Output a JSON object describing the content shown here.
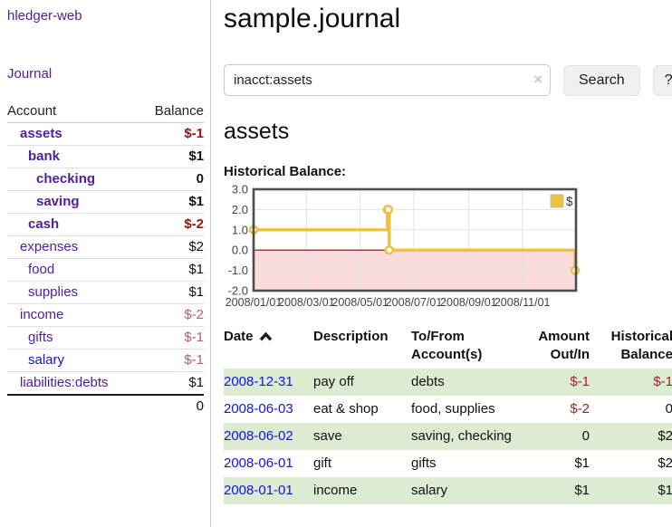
{
  "app": {
    "brand": "hledger-web"
  },
  "sidebar": {
    "journal_link": "Journal",
    "accounts": {
      "col_account": "Account",
      "col_balance": "Balance",
      "rows": [
        {
          "name": "assets",
          "balance": "$-1",
          "level": 1,
          "bold": true,
          "balance_style": "neg-strong",
          "link": "purple"
        },
        {
          "name": "bank",
          "balance": "$1",
          "level": 2,
          "bold": true,
          "balance_style": "pos",
          "link": "purple"
        },
        {
          "name": "checking",
          "balance": "0",
          "level": 3,
          "bold": true,
          "balance_style": "pos",
          "link": "purple"
        },
        {
          "name": "saving",
          "balance": "$1",
          "level": 3,
          "bold": true,
          "balance_style": "pos",
          "link": "purple"
        },
        {
          "name": "cash",
          "balance": "$-2",
          "level": 2,
          "bold": true,
          "balance_style": "neg-strong",
          "link": "purple"
        },
        {
          "name": "expenses",
          "balance": "$2",
          "level": 1,
          "bold": false,
          "balance_style": "pos",
          "link": "purple"
        },
        {
          "name": "food",
          "balance": "$1",
          "level": 2,
          "bold": false,
          "balance_style": "pos",
          "link": "purple"
        },
        {
          "name": "supplies",
          "balance": "$1",
          "level": 2,
          "bold": false,
          "balance_style": "pos",
          "link": "purple"
        },
        {
          "name": "income",
          "balance": "$-2",
          "level": 1,
          "bold": false,
          "balance_style": "neg-soft",
          "link": "purple"
        },
        {
          "name": "gifts",
          "balance": "$-1",
          "level": 2,
          "bold": false,
          "balance_style": "neg-soft",
          "link": "purple"
        },
        {
          "name": "salary",
          "balance": "$-1",
          "level": 2,
          "bold": false,
          "balance_style": "neg-soft",
          "link": "blue"
        },
        {
          "name": "liabilities:debts",
          "balance": "$1",
          "level": 1,
          "bold": false,
          "balance_style": "pos",
          "link": "purple"
        }
      ],
      "total": "0"
    }
  },
  "main": {
    "title": "sample.journal",
    "search": {
      "value": "inacct:assets",
      "clear": "×",
      "search_button": "Search",
      "help_button": "?"
    },
    "account_title": "assets",
    "chart_label": "Historical Balance:"
  },
  "chart_data": {
    "type": "line",
    "step": true,
    "title": "Historical Balance",
    "series": [
      {
        "name": "$",
        "color": "#edc240",
        "points": [
          [
            "2008-01-01",
            1
          ],
          [
            "2008-06-01",
            2
          ],
          [
            "2008-06-02",
            2
          ],
          [
            "2008-06-03",
            0
          ],
          [
            "2008-12-31",
            -1
          ]
        ]
      }
    ],
    "xlim": [
      "2008-01-01",
      "2009-01-01"
    ],
    "ylim": [
      -2,
      3
    ],
    "yticks": [
      3,
      2,
      1,
      0,
      -1,
      -2
    ],
    "ytick_labels": [
      "3.0",
      "2.0",
      "1.0",
      "0.0",
      "-1.0",
      "-2.0"
    ],
    "xticks": [
      {
        "date": "2008-01-01",
        "label": "2008/01/01"
      },
      {
        "date": "2008-03-01",
        "label": "2008/03/01"
      },
      {
        "date": "2008-05-01",
        "label": "2008/05/01"
      },
      {
        "date": "2008-07-01",
        "label": "2008/07/01"
      },
      {
        "date": "2008-09-01",
        "label": "2008/09/01"
      },
      {
        "date": "2008-11-01",
        "label": "2008/11/01"
      }
    ],
    "grid": true,
    "legend_position": "top-right",
    "legend": [
      {
        "label": "$",
        "color": "#edc240"
      }
    ],
    "negative_fill": "#fadcdc",
    "zero_line_color": "#8b0000",
    "border_color": "#4d4d4d",
    "grid_color": "#e3e3e3"
  },
  "register": {
    "headers": {
      "date": "Date",
      "description": "Description",
      "accounts": "To/From Account(s)",
      "amount": "Amount Out/In",
      "balance": "Historical Balance"
    },
    "rows": [
      {
        "date": "2008-12-31",
        "description": "pay off",
        "accounts": "debts",
        "amount": "$-1",
        "balance": "$-1",
        "amount_neg": true,
        "balance_neg": true
      },
      {
        "date": "2008-06-03",
        "description": "eat & shop",
        "accounts": "food, supplies",
        "amount": "$-2",
        "balance": "0",
        "amount_neg": true,
        "balance_neg": false
      },
      {
        "date": "2008-06-02",
        "description": "save",
        "accounts": "saving, checking",
        "amount": "0",
        "balance": "$2",
        "amount_neg": false,
        "balance_neg": false
      },
      {
        "date": "2008-06-01",
        "description": "gift",
        "accounts": "gifts",
        "amount": "$1",
        "balance": "$2",
        "amount_neg": false,
        "balance_neg": false
      },
      {
        "date": "2008-01-01",
        "description": "income",
        "accounts": "salary",
        "amount": "$1",
        "balance": "$1",
        "amount_neg": false,
        "balance_neg": false
      }
    ]
  }
}
